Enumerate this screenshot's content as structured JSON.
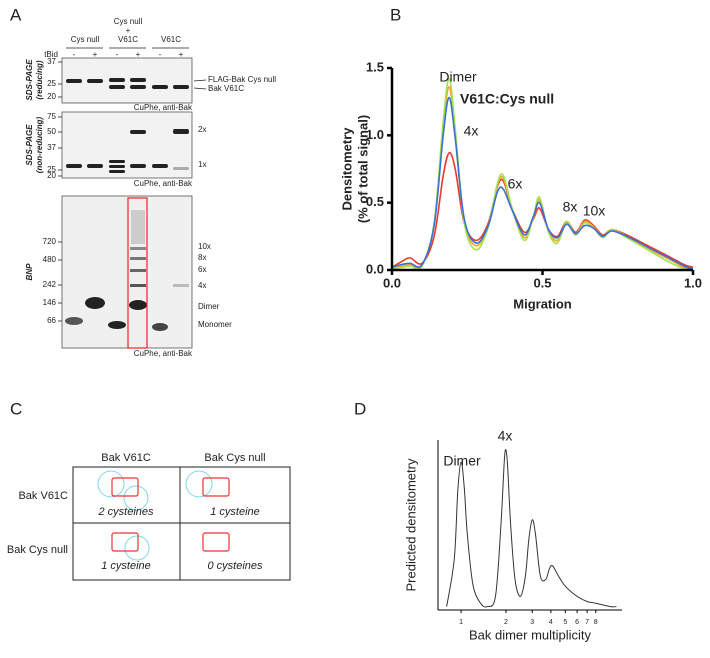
{
  "panel_labels": [
    "A",
    "B",
    "C",
    "D"
  ],
  "panel_a": {
    "conditions": [
      "Cys null",
      [
        "Cys null",
        "+",
        "V61C"
      ],
      "V61C"
    ],
    "treatment_label": "tBid",
    "lanes": [
      "-",
      "+",
      "-",
      "+",
      "-",
      "+"
    ],
    "gels": [
      {
        "y_label": [
          "SDS-PAGE",
          "(reducing)"
        ],
        "markers": [
          "37",
          "25",
          "20"
        ],
        "bands": [
          "FLAG-Bak Cys null",
          "Bak V61C"
        ],
        "caption": "CuPhe, anti-Bak"
      },
      {
        "y_label": [
          "SDS-PAGE",
          "(non-reducing)"
        ],
        "markers": [
          "75",
          "50",
          "37",
          "25",
          "20"
        ],
        "bands": [
          "2x",
          "1x"
        ],
        "caption": "CuPhe, anti-Bak"
      },
      {
        "y_label": [
          "BNP"
        ],
        "markers": [
          "720",
          "480",
          "242",
          "146",
          "66"
        ],
        "bands": [
          "10x",
          "8x",
          "6x",
          "4x",
          "Dimer",
          "Monomer"
        ],
        "caption": "CuPhe, anti-Bak"
      }
    ]
  },
  "panel_c": {
    "columns": [
      "Bak V61C",
      "Bak Cys null"
    ],
    "rows": [
      {
        "label": "Bak V61C",
        "cells": [
          "2 cysteines",
          "1 cysteine"
        ]
      },
      {
        "label": "Bak Cys null",
        "cells": [
          "1 cysteine",
          "0 cysteines"
        ]
      }
    ]
  },
  "chart_data": [
    {
      "type": "line",
      "title": "V61C:Cys null",
      "xlabel": "Migration",
      "ylabel": [
        "Densitometry",
        "(% of total signal)"
      ],
      "annotations": [
        "Dimer",
        "4x",
        "6x",
        "8x",
        "10x"
      ],
      "x": [
        0,
        0.03,
        0.06,
        0.1,
        0.14,
        0.17,
        0.19,
        0.21,
        0.24,
        0.28,
        0.32,
        0.35,
        0.37,
        0.4,
        0.44,
        0.47,
        0.49,
        0.52,
        0.55,
        0.58,
        0.61,
        0.64,
        0.67,
        0.7,
        0.73,
        0.78,
        0.85,
        0.92,
        0.97,
        1.0
      ],
      "series": [
        {
          "color": "#e8392b",
          "values": [
            0.02,
            0.06,
            0.09,
            0.05,
            0.25,
            0.7,
            0.87,
            0.75,
            0.35,
            0.22,
            0.35,
            0.62,
            0.66,
            0.45,
            0.28,
            0.38,
            0.46,
            0.3,
            0.25,
            0.36,
            0.28,
            0.37,
            0.33,
            0.26,
            0.3,
            0.26,
            0.18,
            0.1,
            0.04,
            0.02
          ]
        },
        {
          "color": "#f5a623",
          "values": [
            0.01,
            0.03,
            0.04,
            0.04,
            0.34,
            1.05,
            1.36,
            1.0,
            0.36,
            0.18,
            0.33,
            0.63,
            0.68,
            0.45,
            0.24,
            0.39,
            0.52,
            0.29,
            0.22,
            0.35,
            0.27,
            0.36,
            0.32,
            0.25,
            0.3,
            0.25,
            0.16,
            0.08,
            0.02,
            0.01
          ]
        },
        {
          "color": "#a4e04a",
          "values": [
            0.01,
            0.02,
            0.03,
            0.03,
            0.35,
            1.1,
            1.42,
            1.05,
            0.35,
            0.15,
            0.32,
            0.64,
            0.7,
            0.45,
            0.22,
            0.4,
            0.54,
            0.28,
            0.2,
            0.36,
            0.26,
            0.35,
            0.31,
            0.24,
            0.3,
            0.24,
            0.15,
            0.06,
            0.01,
            0.0
          ]
        },
        {
          "color": "#3a6fd8",
          "values": [
            0.02,
            0.04,
            0.05,
            0.04,
            0.33,
            1.0,
            1.28,
            0.98,
            0.38,
            0.2,
            0.33,
            0.58,
            0.6,
            0.44,
            0.26,
            0.4,
            0.5,
            0.3,
            0.24,
            0.34,
            0.27,
            0.33,
            0.31,
            0.25,
            0.29,
            0.25,
            0.17,
            0.09,
            0.03,
            0.01
          ]
        }
      ],
      "xlim": [
        0,
        1
      ],
      "ylim": [
        0,
        1.5
      ],
      "xticks": [
        {
          "value": 0,
          "label": "0.0"
        },
        0.5,
        {
          "value": 1,
          "label": "1.0"
        }
      ],
      "yticks": [
        {
          "value": 0,
          "label": "0.0"
        },
        0.5,
        {
          "value": 1,
          "label": "1.0"
        },
        1.5
      ]
    },
    {
      "type": "line",
      "xlabel": "Bak dimer multiplicity",
      "ylabel": [
        "Predicted densitometry"
      ],
      "annotations": [
        "Dimer",
        "4x"
      ],
      "log_x": true,
      "x": [
        0.8,
        0.9,
        0.95,
        1,
        1.05,
        1.1,
        1.2,
        1.35,
        1.5,
        1.7,
        1.85,
        1.95,
        2,
        2.05,
        2.15,
        2.3,
        2.5,
        2.7,
        2.85,
        3,
        3.15,
        3.4,
        3.7,
        3.9,
        4.1,
        4.5,
        5,
        6,
        7,
        8,
        10,
        11
      ],
      "series": [
        {
          "color": "#333333",
          "values": [
            0.02,
            0.3,
            0.7,
            0.87,
            0.72,
            0.45,
            0.15,
            0.04,
            0.02,
            0.08,
            0.5,
            0.88,
            0.94,
            0.85,
            0.5,
            0.18,
            0.08,
            0.2,
            0.42,
            0.53,
            0.45,
            0.2,
            0.18,
            0.24,
            0.26,
            0.2,
            0.14,
            0.08,
            0.05,
            0.04,
            0.02,
            0.02
          ]
        }
      ],
      "xlim": [
        0.7,
        12
      ],
      "ylim": [
        0,
        1
      ],
      "xticks": [
        1,
        2,
        3,
        4,
        5,
        6,
        7,
        8
      ]
    }
  ]
}
